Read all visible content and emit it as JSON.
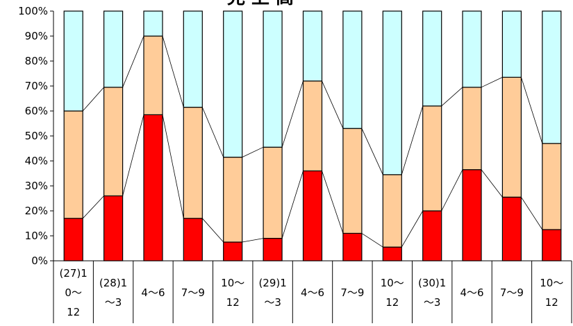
{
  "chart_data": {
    "type": "bar",
    "stacked": true,
    "normalized": true,
    "title": "見 上 高",
    "xlabel": "",
    "ylabel": "",
    "ylim": [
      0,
      100
    ],
    "yticks": [
      "0%",
      "10%",
      "20%",
      "30%",
      "40%",
      "50%",
      "60%",
      "70%",
      "80%",
      "90%",
      "100%"
    ],
    "grid": false,
    "legend": "none",
    "categories": [
      [
        "(27)1",
        "0～",
        "12"
      ],
      [
        "(28)1",
        "～3"
      ],
      [
        "4～6"
      ],
      [
        "7～9"
      ],
      [
        "10～",
        "12"
      ],
      [
        "(29)1",
        "～3"
      ],
      [
        "4～6"
      ],
      [
        "7～9"
      ],
      [
        "10～",
        "12"
      ],
      [
        "(30)1",
        "～3"
      ],
      [
        "4～6"
      ],
      [
        "7～9"
      ],
      [
        "10～",
        "12"
      ]
    ],
    "series": [
      {
        "color": "#ff0000",
        "values": [
          17,
          26,
          58.5,
          17,
          7.5,
          9,
          36,
          11,
          5.5,
          20,
          36.5,
          25.5,
          12.5
        ]
      },
      {
        "color": "#ffcc99",
        "values": [
          43,
          43.5,
          31.5,
          44.5,
          34,
          36.5,
          36,
          42,
          29,
          42,
          33,
          48,
          34.5
        ]
      },
      {
        "color": "#ccffff",
        "values": [
          40,
          30.5,
          10,
          38.5,
          58.5,
          54.5,
          28,
          47,
          65.5,
          38,
          30.5,
          26.5,
          53
        ]
      }
    ]
  }
}
